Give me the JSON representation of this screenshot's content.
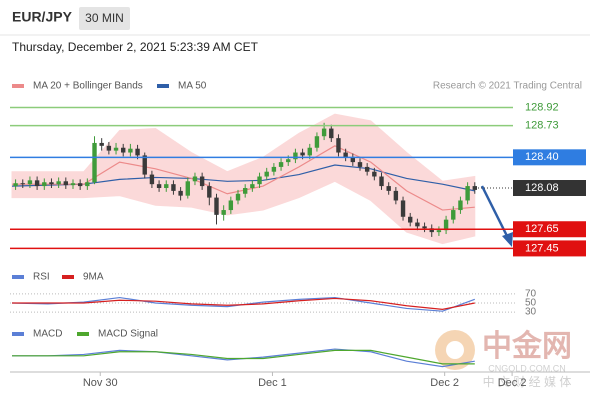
{
  "header": {
    "symbol": "EUR/JPY",
    "interval": "30 MIN",
    "timestamp": "Thursday, December 2, 2021 5:23:39 AM CET",
    "source": "Research © 2021 Trading Central"
  },
  "watermark": {
    "title": "中金网",
    "domain": "CNGOLD.COM.CN",
    "tagline": "中 文 财 经 媒 体"
  },
  "chart_data": [
    {
      "type": "candlestick",
      "xlim": [
        0,
        80
      ],
      "ylim": [
        127.35,
        129.05
      ],
      "x": [
        0.5,
        1.5,
        2.5,
        3.5,
        4.5,
        5.5,
        6.5,
        7.5,
        8.5,
        9.5,
        10.5,
        11.5,
        12.5,
        13.5,
        14.5,
        15.5,
        16.5,
        17.5,
        18.5,
        19.5,
        20.5,
        21.5,
        22.5,
        23.5,
        24.5,
        25.5,
        26.5,
        27.5,
        28.5,
        29.5,
        30.5,
        31.5,
        32.5,
        33.5,
        34.5,
        35.5,
        36.5,
        37.5,
        38.5,
        39.5,
        40.5,
        41.5,
        42.5,
        43.5,
        44.5,
        45.5,
        46.5,
        47.5,
        48.5,
        49.5,
        50.5,
        51.5,
        52.5,
        53.5,
        54.5,
        55.5,
        56.5,
        57.5,
        58.5,
        59.5,
        60.5,
        61.5,
        62.5,
        63.5,
        64.5
      ],
      "open": [
        128.1,
        128.13,
        128.12,
        128.16,
        128.1,
        128.14,
        128.12,
        128.15,
        128.11,
        128.13,
        128.1,
        128.14,
        128.55,
        128.52,
        128.47,
        128.5,
        128.45,
        128.49,
        128.42,
        128.22,
        128.12,
        128.08,
        128.12,
        128.05,
        128.0,
        128.15,
        128.2,
        128.1,
        127.98,
        127.8,
        127.85,
        127.95,
        128.02,
        128.08,
        128.12,
        128.2,
        128.25,
        128.3,
        128.35,
        128.38,
        128.45,
        128.42,
        128.5,
        128.62,
        128.7,
        128.6,
        128.45,
        128.4,
        128.35,
        128.3,
        128.25,
        128.2,
        128.1,
        128.05,
        127.95,
        127.78,
        127.72,
        127.68,
        127.66,
        127.62,
        127.64,
        127.75,
        127.85,
        127.95,
        128.1
      ],
      "high": [
        128.17,
        128.17,
        128.2,
        128.2,
        128.18,
        128.18,
        128.19,
        128.19,
        128.17,
        128.17,
        128.18,
        128.62,
        128.6,
        128.56,
        128.55,
        128.54,
        128.54,
        128.53,
        128.45,
        128.26,
        128.16,
        128.16,
        128.16,
        128.09,
        128.19,
        128.24,
        128.24,
        128.14,
        128.02,
        127.9,
        127.99,
        128.06,
        128.12,
        128.16,
        128.24,
        128.29,
        128.34,
        128.39,
        128.42,
        128.49,
        128.49,
        128.54,
        128.66,
        128.76,
        128.74,
        128.64,
        128.49,
        128.44,
        128.39,
        128.34,
        128.29,
        128.24,
        128.14,
        128.09,
        127.99,
        127.82,
        127.76,
        127.72,
        127.7,
        127.68,
        127.79,
        127.89,
        127.99,
        128.14,
        128.14
      ],
      "low": [
        128.06,
        128.08,
        128.08,
        128.06,
        128.06,
        128.08,
        128.08,
        128.07,
        128.07,
        128.06,
        128.06,
        128.12,
        128.47,
        128.43,
        128.43,
        128.41,
        128.41,
        128.38,
        128.18,
        128.08,
        128.04,
        128.04,
        128.01,
        127.95,
        127.97,
        128.11,
        128.06,
        127.9,
        127.7,
        127.74,
        127.81,
        127.91,
        127.98,
        128.04,
        128.08,
        128.16,
        128.21,
        128.26,
        128.31,
        128.34,
        128.38,
        128.38,
        128.46,
        128.58,
        128.56,
        128.41,
        128.36,
        128.31,
        128.26,
        128.21,
        128.16,
        128.06,
        128.01,
        127.91,
        127.74,
        127.68,
        127.64,
        127.62,
        127.57,
        127.58,
        127.6,
        127.71,
        127.81,
        127.91,
        128.02
      ],
      "close": [
        128.13,
        128.12,
        128.16,
        128.1,
        128.14,
        128.12,
        128.15,
        128.11,
        128.13,
        128.1,
        128.14,
        128.55,
        128.52,
        128.47,
        128.5,
        128.45,
        128.49,
        128.42,
        128.22,
        128.12,
        128.08,
        128.12,
        128.05,
        128.0,
        128.15,
        128.2,
        128.1,
        127.98,
        127.8,
        127.85,
        127.95,
        128.02,
        128.08,
        128.12,
        128.2,
        128.25,
        128.3,
        128.35,
        128.38,
        128.45,
        128.42,
        128.5,
        128.62,
        128.7,
        128.6,
        128.45,
        128.4,
        128.35,
        128.3,
        128.25,
        128.2,
        128.1,
        128.05,
        127.95,
        127.78,
        127.72,
        127.68,
        127.66,
        127.62,
        127.64,
        127.75,
        127.85,
        127.95,
        128.1,
        128.06
      ],
      "up_color": "#3f9b3a",
      "down_color": "#3a3a3a",
      "series": [
        {
          "name": "MA 20 + Bollinger Bands",
          "color": "#ec8a8a",
          "band_color": "#fbd3d3",
          "x": [
            0,
            5,
            10,
            15,
            20,
            25,
            30,
            35,
            40,
            45,
            50,
            55,
            60,
            64.5
          ],
          "values": [
            128.12,
            128.12,
            128.12,
            128.35,
            128.28,
            128.18,
            128.02,
            128.1,
            128.3,
            128.52,
            128.35,
            128.05,
            127.85,
            127.88
          ],
          "upper": [
            128.25,
            128.25,
            128.25,
            128.68,
            128.7,
            128.45,
            128.25,
            128.4,
            128.65,
            128.85,
            128.78,
            128.45,
            128.15,
            128.2
          ],
          "lower": [
            127.98,
            127.98,
            127.98,
            128.0,
            127.9,
            127.88,
            127.8,
            127.85,
            127.98,
            128.15,
            127.95,
            127.62,
            127.5,
            127.58
          ]
        },
        {
          "name": "MA 50",
          "color": "#2f5fa8",
          "x": [
            0,
            5,
            10,
            15,
            20,
            25,
            30,
            35,
            40,
            45,
            50,
            55,
            60,
            64.5
          ],
          "values": [
            128.1,
            128.11,
            128.12,
            128.17,
            128.19,
            128.18,
            128.15,
            128.16,
            128.22,
            128.32,
            128.28,
            128.18,
            128.12,
            128.05
          ]
        }
      ],
      "levels": [
        {
          "value": 128.92,
          "color": "#8ccc7a",
          "boxed": false
        },
        {
          "value": 128.73,
          "color": "#8ccc7a",
          "boxed": false
        },
        {
          "value": 128.4,
          "label": "128.40",
          "color": "#2f7de1",
          "boxed": true
        },
        {
          "value": 128.08,
          "color": "#333333",
          "boxed": true,
          "dotted": true
        },
        {
          "value": 127.65,
          "color": "#e01010",
          "boxed": true
        },
        {
          "value": 127.45,
          "color": "#e01010",
          "boxed": true
        }
      ]
    },
    {
      "type": "line",
      "xlim": [
        0,
        80
      ],
      "ylim": [
        17,
        83
      ],
      "yticks": [
        70,
        50,
        30
      ],
      "x": [
        0,
        5,
        10,
        15,
        20,
        25,
        30,
        35,
        40,
        45,
        50,
        55,
        60,
        64.5
      ],
      "series": [
        {
          "name": "RSI",
          "color": "#5b7fd6",
          "values": [
            50,
            48,
            52,
            62,
            50,
            45,
            42,
            52,
            58,
            62,
            50,
            38,
            32,
            58
          ]
        },
        {
          "name": "9MA",
          "color": "#d62020",
          "values": [
            50,
            50,
            50,
            56,
            54,
            48,
            45,
            48,
            55,
            60,
            55,
            44,
            36,
            50
          ]
        }
      ]
    },
    {
      "type": "line",
      "xlim": [
        0,
        80
      ],
      "ylim": [
        -0.12,
        0.08
      ],
      "x": [
        0,
        5,
        10,
        15,
        20,
        25,
        30,
        35,
        40,
        45,
        50,
        55,
        60,
        64.5
      ],
      "xticks": [
        {
          "value": 12.3,
          "label": "Nov 30"
        },
        {
          "value": 36.3,
          "label": "Dec 1"
        },
        {
          "value": 60.3,
          "label": "Dec 2"
        },
        {
          "value": 69.7,
          "label": "Dec 2"
        }
      ],
      "series": [
        {
          "name": "MACD",
          "color": "#5b7fd6",
          "values": [
            0,
            0,
            0.01,
            0.04,
            0.03,
            0,
            -0.03,
            -0.01,
            0.02,
            0.05,
            0.03,
            -0.04,
            -0.08,
            -0.04
          ]
        },
        {
          "name": "MACD Signal",
          "color": "#4ea72e",
          "values": [
            0,
            0,
            0,
            0.03,
            0.03,
            0.01,
            -0.02,
            -0.02,
            0.01,
            0.04,
            0.04,
            -0.01,
            -0.06,
            -0.06
          ]
        }
      ]
    }
  ]
}
